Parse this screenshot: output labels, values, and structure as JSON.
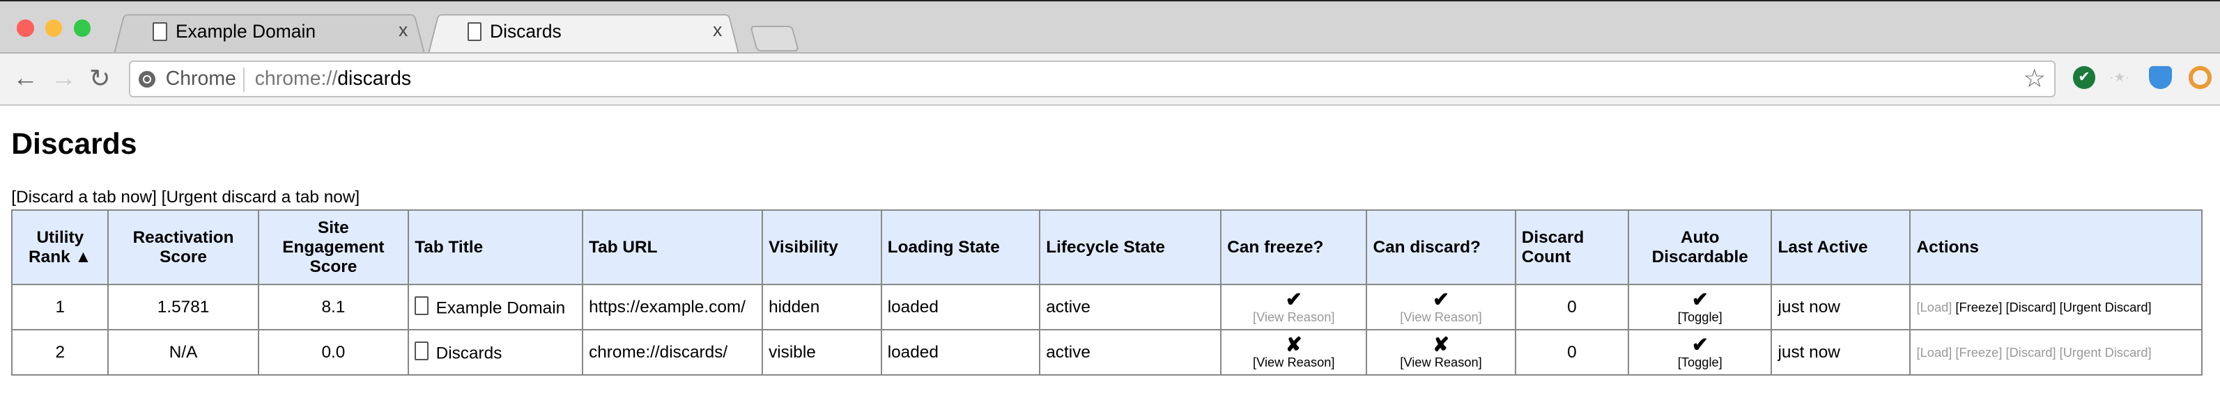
{
  "browser": {
    "tabs": [
      {
        "title": "Example Domain",
        "active": false
      },
      {
        "title": "Discards",
        "active": true
      }
    ],
    "omnibox": {
      "chip": "Chrome",
      "scheme": "chrome://",
      "host": "discards"
    },
    "close_glyph": "x",
    "icons": [
      "back-arrow-icon",
      "forward-arrow-icon",
      "reload-icon",
      "bookmark-star-icon",
      "extension-check-icon",
      "extension-dots-icon",
      "extension-shield-icon",
      "extension-keyhole-icon"
    ]
  },
  "page": {
    "title": "Discards",
    "top_actions": [
      "[Discard a tab now]",
      "[Urgent discard a tab now]"
    ],
    "columns": [
      "Utility Rank ▲",
      "Reactivation Score",
      "Site Engagement Score",
      "Tab Title",
      "Tab URL",
      "Visibility",
      "Loading State",
      "Lifecycle State",
      "Can freeze?",
      "Can discard?",
      "Discard Count",
      "Auto Discardable",
      "Last Active",
      "Actions"
    ],
    "rows": [
      {
        "rank": "1",
        "reactivation": "1.5781",
        "engagement": "8.1",
        "title": "Example Domain",
        "url": "https://example.com/",
        "visibility": "hidden",
        "loading": "loaded",
        "lifecycle": "active",
        "can_freeze": "✔",
        "freeze_reason": "[View Reason]",
        "can_discard": "✔",
        "discard_reason": "[View Reason]",
        "discard_count": "0",
        "auto": "✔",
        "toggle": "[Toggle]",
        "last_active": "just now",
        "actions": [
          "[Load]",
          "[Freeze]",
          "[Discard]",
          "[Urgent Discard]"
        ],
        "actions_enabled": [
          false,
          true,
          true,
          true
        ],
        "reasons_enabled": false
      },
      {
        "rank": "2",
        "reactivation": "N/A",
        "engagement": "0.0",
        "title": "Discards",
        "url": "chrome://discards/",
        "visibility": "visible",
        "loading": "loaded",
        "lifecycle": "active",
        "can_freeze": "✘",
        "freeze_reason": "[View Reason]",
        "can_discard": "✘",
        "discard_reason": "[View Reason]",
        "discard_count": "0",
        "auto": "✔",
        "toggle": "[Toggle]",
        "last_active": "just now",
        "actions": [
          "[Load]",
          "[Freeze]",
          "[Discard]",
          "[Urgent Discard]"
        ],
        "actions_enabled": [
          false,
          false,
          false,
          false
        ],
        "reasons_enabled": true
      }
    ]
  },
  "colors": {
    "header_bg": "#e0ecfe",
    "disabled_link": "#999999",
    "close": "#fc605c",
    "minimize": "#fdbc40",
    "maximize": "#34c84a"
  }
}
